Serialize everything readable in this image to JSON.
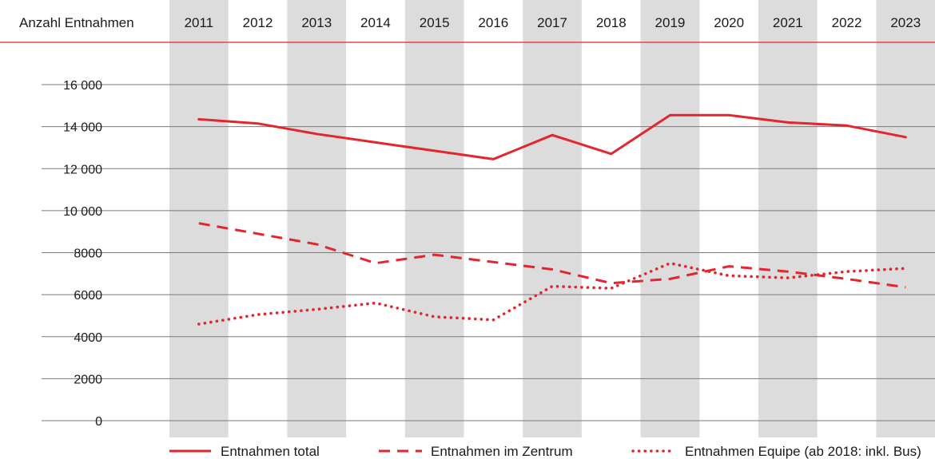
{
  "chart_data": {
    "type": "line",
    "title": "",
    "ylabel": "Anzahl Entnahmen",
    "xlabel": "",
    "ylim": [
      0,
      16000
    ],
    "yticks": [
      0,
      2000,
      4000,
      6000,
      8000,
      10000,
      12000,
      14000,
      16000
    ],
    "ytick_labels": [
      "0",
      "2000",
      "4000",
      "6000",
      "8000",
      "10 000",
      "12 000",
      "14 000",
      "16 000"
    ],
    "categories": [
      "2011",
      "2012",
      "2013",
      "2014",
      "2015",
      "2016",
      "2017",
      "2018",
      "2019",
      "2020",
      "2021",
      "2022",
      "2023"
    ],
    "grid": "horizontal",
    "column_shading": "alternating grey/white year columns",
    "legend_position": "bottom",
    "series": [
      {
        "name": "Entnahmen total",
        "style": "solid",
        "color": "#e3262e",
        "values": [
          14350,
          14150,
          13650,
          13250,
          12850,
          12450,
          13600,
          12700,
          14550,
          14550,
          14200,
          14050,
          13500
        ]
      },
      {
        "name": "Entnahmen im Zentrum",
        "style": "dashed",
        "color": "#e3262e",
        "values": [
          9400,
          8900,
          8400,
          7500,
          7900,
          7550,
          7200,
          6550,
          6750,
          7350,
          7100,
          6750,
          6350
        ]
      },
      {
        "name": "Entnahmen Equipe (ab 2018: inkl. Bus)",
        "style": "dotted",
        "color": "#e3262e",
        "values": [
          4600,
          5050,
          5300,
          5600,
          4950,
          4800,
          6400,
          6300,
          7500,
          6900,
          6800,
          7100,
          7250
        ]
      }
    ]
  },
  "colors": {
    "accent": "#e3262e",
    "column_shade": "#dcdcdc",
    "gridline": "#7a7a7a"
  }
}
